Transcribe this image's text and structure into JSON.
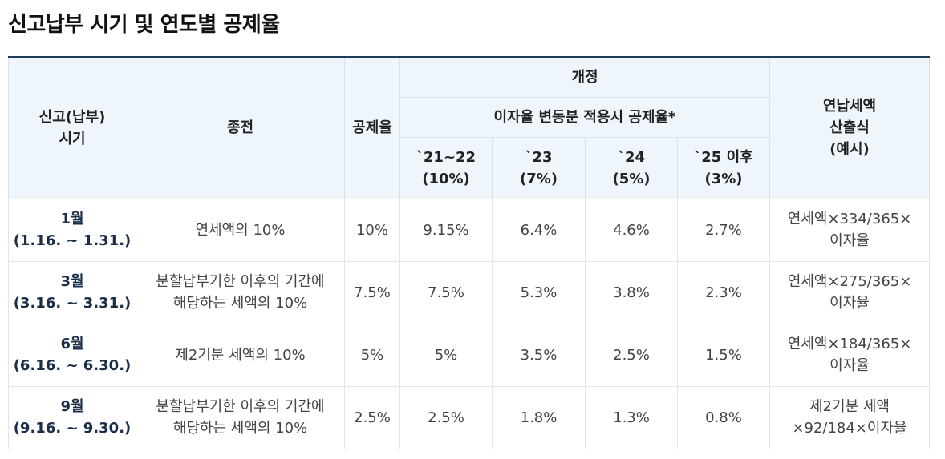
{
  "title": "신고납부 시기 및 연도별 공제율",
  "header": {
    "period": [
      "신고(납부)",
      "시기"
    ],
    "previous": "종전",
    "deduction_rate": "공제율",
    "revised": "개정",
    "interest_adjusted": "이자율 변동분 적용시 공제율*",
    "years": [
      {
        "year": "`21~22",
        "rate": "(10%)"
      },
      {
        "year": "`23",
        "rate": "(7%)"
      },
      {
        "year": "`24",
        "rate": "(5%)"
      },
      {
        "year": "`25 이후",
        "rate": "(3%)"
      }
    ],
    "formula": [
      "연납세액",
      "산출식",
      "(예시)"
    ]
  },
  "rows": [
    {
      "month": "1월",
      "range": "(1.16. ~ 1.31.)",
      "previous": [
        "연세액의 10%"
      ],
      "rate": "10%",
      "y2122": "9.15%",
      "y23": "6.4%",
      "y24": "4.6%",
      "y25": "2.7%",
      "formula": [
        "연세액×334/365×",
        "이자율"
      ]
    },
    {
      "month": "3월",
      "range": "(3.16. ~ 3.31.)",
      "previous": [
        "분할납부기한 이후의 기간에",
        "해당하는 세액의 10%"
      ],
      "rate": "7.5%",
      "y2122": "7.5%",
      "y23": "5.3%",
      "y24": "3.8%",
      "y25": "2.3%",
      "formula": [
        "연세액×275/365×",
        "이자율"
      ]
    },
    {
      "month": "6월",
      "range": "(6.16. ~ 6.30.)",
      "previous": [
        "제2기분 세액의 10%"
      ],
      "rate": "5%",
      "y2122": "5%",
      "y23": "3.5%",
      "y24": "2.5%",
      "y25": "1.5%",
      "formula": [
        "연세액×184/365×",
        "이자율"
      ]
    },
    {
      "month": "9월",
      "range": "(9.16. ~ 9.30.)",
      "previous": [
        "분할납부기한 이후의 기간에",
        "해당하는 세액의 10%"
      ],
      "rate": "2.5%",
      "y2122": "2.5%",
      "y23": "1.8%",
      "y24": "1.3%",
      "y25": "0.8%",
      "formula": [
        "제2기분 세액",
        "×92/184×이자율"
      ]
    }
  ]
}
